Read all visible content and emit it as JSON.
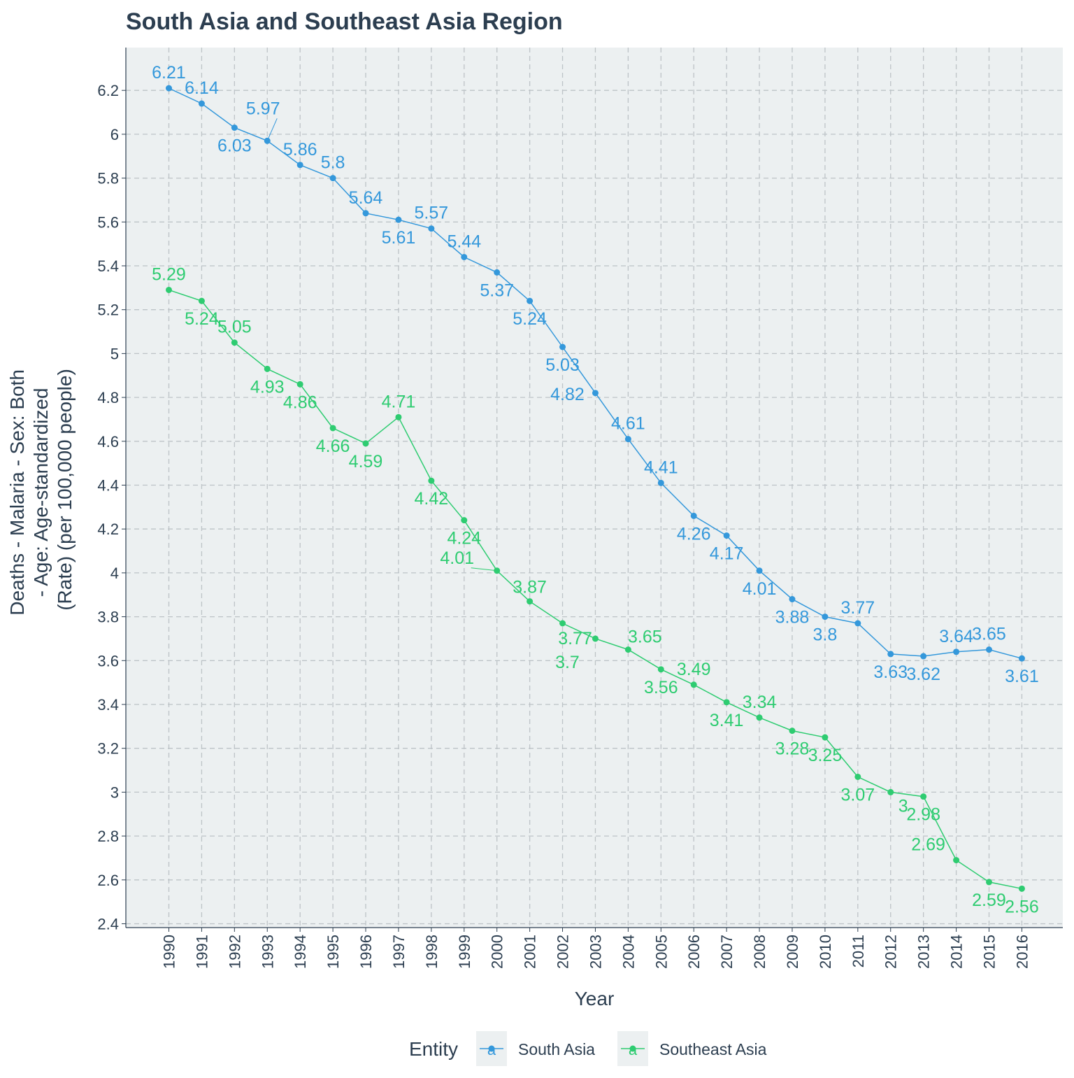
{
  "chart_data": {
    "type": "line",
    "title": "South Asia and Southeast Asia Region",
    "xlabel": "Year",
    "ylabel_lines": [
      "Deaths - Malaria - Sex: Both",
      "- Age: Age-standardized",
      "(Rate) (per 100,000 people)"
    ],
    "ylim": [
      2.4,
      6.35
    ],
    "y_ticks": [
      2.4,
      2.6,
      2.8,
      3,
      3.2,
      3.4,
      3.6,
      3.8,
      4,
      4.2,
      4.4,
      4.6,
      4.8,
      5,
      5.2,
      5.4,
      5.6,
      5.8,
      6,
      6.2
    ],
    "x": [
      1990,
      1991,
      1992,
      1993,
      1994,
      1995,
      1996,
      1997,
      1998,
      1999,
      2000,
      2001,
      2002,
      2003,
      2004,
      2005,
      2006,
      2007,
      2008,
      2009,
      2010,
      2011,
      2012,
      2013,
      2014,
      2015,
      2016
    ],
    "grid": true,
    "legend_title": "Entity",
    "legend_position": "bottom",
    "legend_key_glyph": "a",
    "series": [
      {
        "name": "South Asia",
        "color": "#3498db",
        "values": [
          6.21,
          6.14,
          6.03,
          5.97,
          5.86,
          5.8,
          5.64,
          5.61,
          5.57,
          5.44,
          5.37,
          5.24,
          5.03,
          4.82,
          4.61,
          4.41,
          4.26,
          4.17,
          4.01,
          3.88,
          3.8,
          3.77,
          3.63,
          3.62,
          3.64,
          3.65,
          3.61
        ]
      },
      {
        "name": "Southeast Asia",
        "color": "#2ecc71",
        "values": [
          5.29,
          5.24,
          5.05,
          4.93,
          4.86,
          4.66,
          4.59,
          4.71,
          4.42,
          4.24,
          4.01,
          3.87,
          3.77,
          3.7,
          3.65,
          3.56,
          3.49,
          3.41,
          3.34,
          3.28,
          3.25,
          3.07,
          3,
          2.98,
          2.69,
          2.59,
          2.56
        ]
      }
    ]
  }
}
